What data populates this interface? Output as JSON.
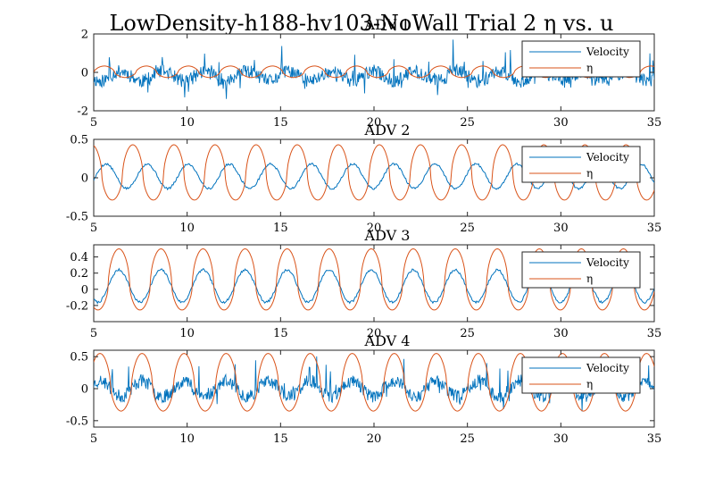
{
  "figure": {
    "title": "LowDensity-h188-hv103-NoWall Trial 2 η vs. u",
    "background": "#ffffff"
  },
  "legend": {
    "entries": [
      "Velocity",
      "η"
    ],
    "placement": "top-right"
  },
  "colors": {
    "velocity": "#0072BD",
    "eta": "#D95319",
    "axes": "#262626"
  },
  "chart_data": [
    {
      "type": "line",
      "title": "ADV 1",
      "xlim": [
        5,
        35
      ],
      "ylim": [
        -2,
        2
      ],
      "xticks": [
        5,
        10,
        15,
        20,
        25,
        30,
        35
      ],
      "yticks": [
        -2,
        0,
        2
      ],
      "series": [
        {
          "name": "Velocity",
          "color": "#0072BD",
          "kind": "noisy",
          "mean": -0.2,
          "amplitude": 0.25,
          "noise": 0.35,
          "spikes": 1.3,
          "period": 2.25,
          "phase": 0.6,
          "seed": 11
        },
        {
          "name": "η",
          "color": "#D95319",
          "kind": "wave",
          "amplitude": 0.33,
          "period": 2.25,
          "phase": 0.0,
          "peakiness": 1.6
        }
      ]
    },
    {
      "type": "line",
      "title": "ADV 2",
      "xlim": [
        5,
        35
      ],
      "ylim": [
        -0.5,
        0.5
      ],
      "xticks": [
        5,
        10,
        15,
        20,
        25,
        30,
        35
      ],
      "yticks": [
        -0.5,
        0,
        0.5
      ],
      "series": [
        {
          "name": "Velocity",
          "color": "#0072BD",
          "kind": "wave",
          "amplitude": 0.16,
          "mean": 0.02,
          "period": 2.2,
          "phase": 0.95,
          "noise": 0.015,
          "seed": 5
        },
        {
          "name": "η",
          "color": "#D95319",
          "kind": "wave",
          "amplitude": 0.4,
          "mean": 0.03,
          "period": 2.2,
          "phase": 0.3,
          "peakiness": 1.8
        }
      ]
    },
    {
      "type": "line",
      "title": "ADV 3",
      "xlim": [
        5,
        35
      ],
      "ylim": [
        -0.4,
        0.55
      ],
      "xticks": [
        5,
        10,
        15,
        20,
        25,
        30,
        35
      ],
      "yticks": [
        -0.2,
        0,
        0.2,
        0.4
      ],
      "series": [
        {
          "name": "Velocity",
          "color": "#0072BD",
          "kind": "wave",
          "amplitude": 0.2,
          "mean": 0.04,
          "period": 2.25,
          "phase": 0.65,
          "noise": 0.015,
          "seed": 7
        },
        {
          "name": "η",
          "color": "#D95319",
          "kind": "wave",
          "amplitude": 0.42,
          "mean": 0.08,
          "period": 2.25,
          "phase": 0.65,
          "peakiness": 1.9
        }
      ]
    },
    {
      "type": "line",
      "title": "ADV 4",
      "xlim": [
        5,
        35
      ],
      "ylim": [
        -0.6,
        0.6
      ],
      "xticks": [
        5,
        10,
        15,
        20,
        25,
        30,
        35
      ],
      "yticks": [
        -0.5,
        0,
        0.5
      ],
      "series": [
        {
          "name": "Velocity",
          "color": "#0072BD",
          "kind": "noisy",
          "mean": 0.0,
          "amplitude": 0.12,
          "noise": 0.1,
          "spikes": 0.35,
          "period": 2.25,
          "phase": 1.1,
          "seed": 23
        },
        {
          "name": "η",
          "color": "#D95319",
          "kind": "wave",
          "amplitude": 0.5,
          "mean": 0.05,
          "period": 2.25,
          "phase": 0.1,
          "peakiness": 1.7
        }
      ]
    }
  ]
}
